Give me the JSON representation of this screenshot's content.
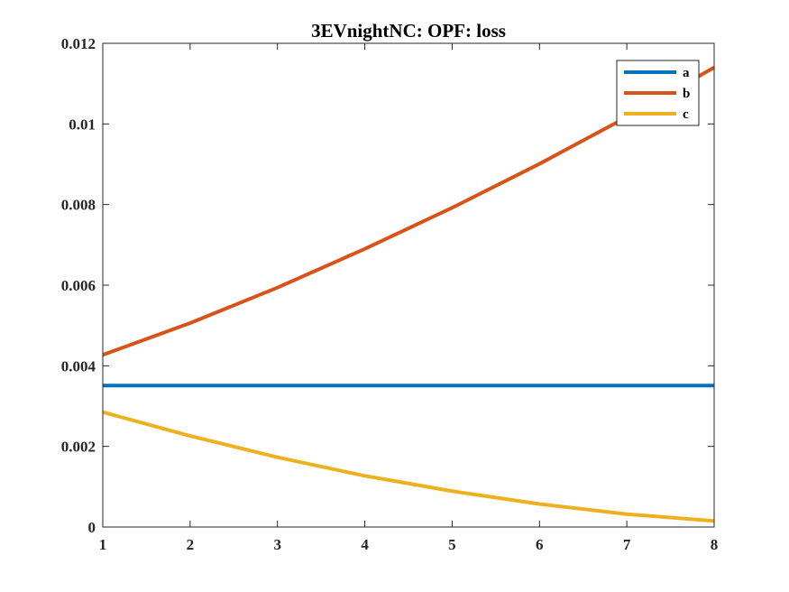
{
  "chart_data": {
    "type": "line",
    "title": "3EVnightNC: OPF: loss",
    "xlabel": "",
    "ylabel": "",
    "x": [
      1,
      2,
      3,
      4,
      5,
      6,
      7,
      8
    ],
    "xlim": [
      1,
      8
    ],
    "ylim": [
      0,
      0.012
    ],
    "xticks": [
      1,
      2,
      3,
      4,
      5,
      6,
      7,
      8
    ],
    "xtick_labels": [
      "1",
      "2",
      "3",
      "4",
      "5",
      "6",
      "7",
      "8"
    ],
    "yticks": [
      0,
      0.002,
      0.004,
      0.006,
      0.008,
      0.01,
      0.012
    ],
    "ytick_labels": [
      "0",
      "0.002",
      "0.004",
      "0.006",
      "0.008",
      "0.01",
      "0.012"
    ],
    "grid": false,
    "legend_position": "top-right",
    "series": [
      {
        "name": "a",
        "color": "#0072BD",
        "values": [
          0.00351,
          0.00351,
          0.00351,
          0.00351,
          0.00351,
          0.00351,
          0.00351,
          0.00351
        ]
      },
      {
        "name": "b",
        "color": "#D95319",
        "values": [
          0.00427,
          0.00506,
          0.00594,
          0.0069,
          0.00792,
          0.00901,
          0.01017,
          0.0114
        ]
      },
      {
        "name": "c",
        "color": "#EDB120",
        "values": [
          0.00285,
          0.00226,
          0.00173,
          0.00127,
          0.00089,
          0.00057,
          0.00032,
          0.00015
        ]
      }
    ]
  }
}
